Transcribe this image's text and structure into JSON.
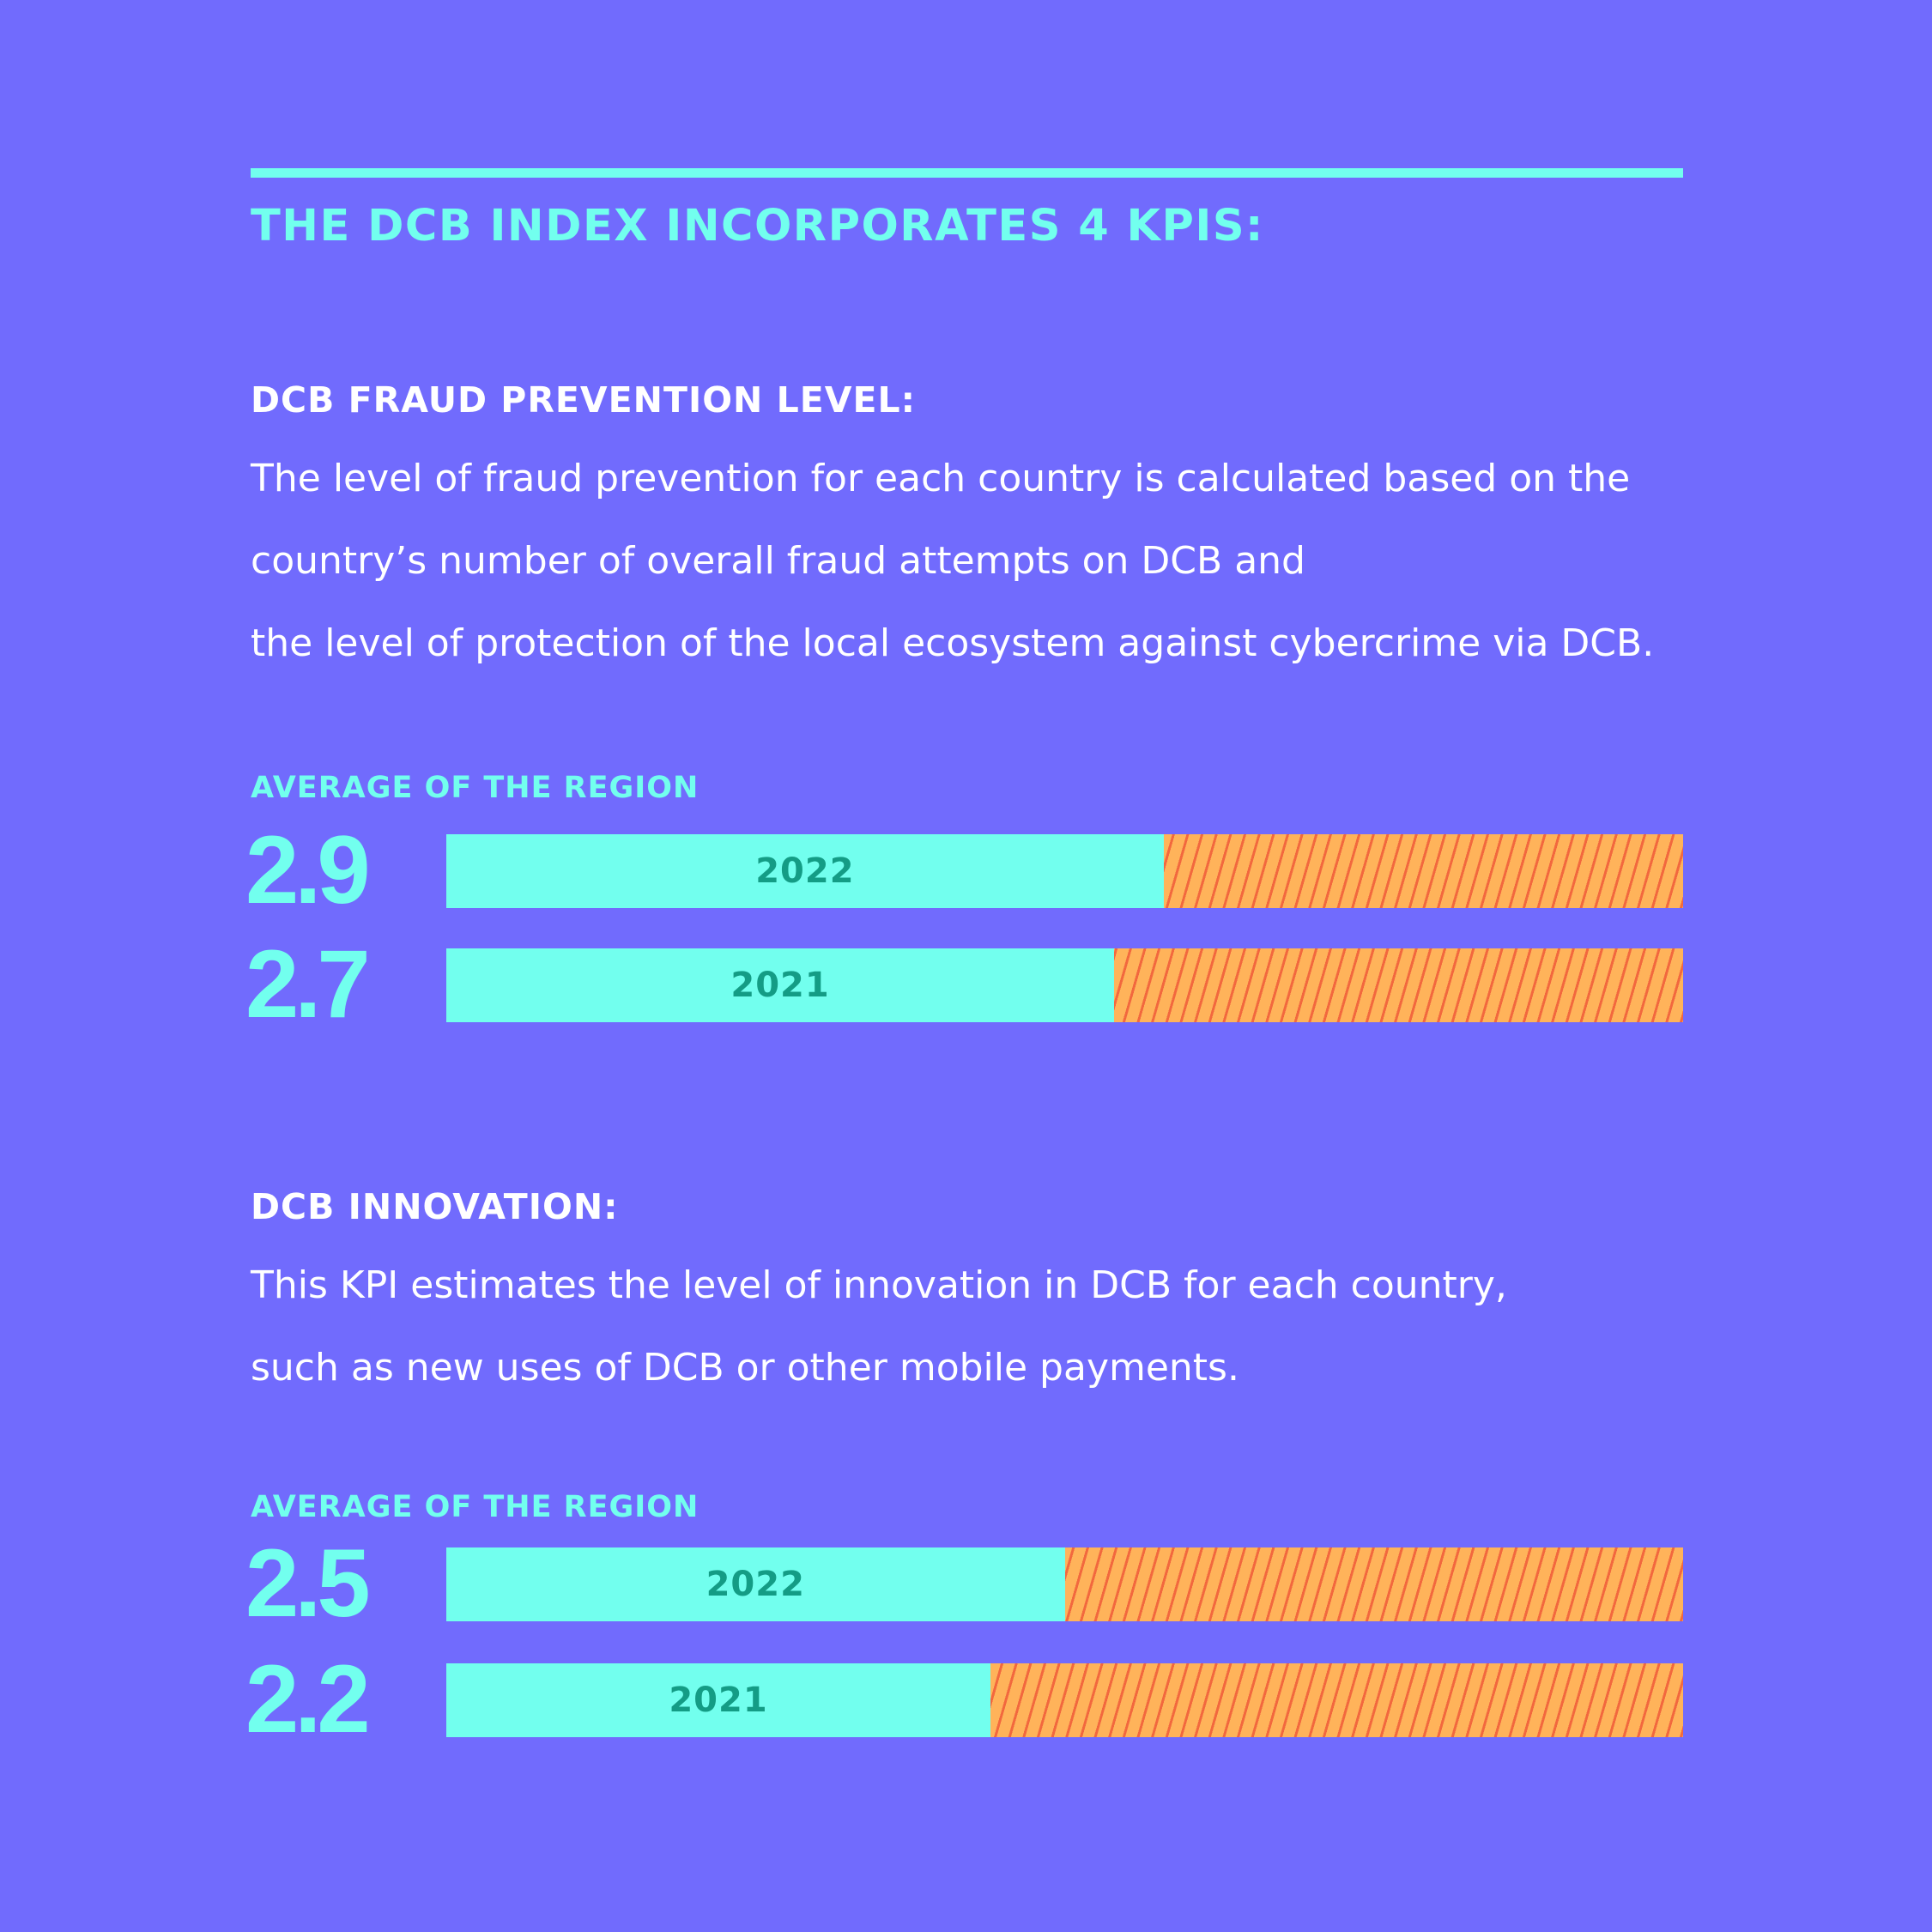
{
  "title": "THE DCB INDEX INCORPORATES 4 KPIS:",
  "colors": {
    "background": "#716bfd",
    "accent": "#72ffee",
    "bar_remainder": "#ffb35a",
    "bar_hatch": "#f2683e",
    "year_text": "#149c85"
  },
  "kpis": [
    {
      "heading": "DCB FRAUD PREVENTION LEVEL:",
      "description": [
        "The level of fraud prevention for each country is calculated based on the",
        "country’s number of overall fraud attempts on DCB and",
        "the level of protection of the local ecosystem against cybercrime via DCB."
      ],
      "avg_label": "AVERAGE OF THE REGION",
      "rows": [
        {
          "value_label": "2.9",
          "year": "2022"
        },
        {
          "value_label": "2.7",
          "year": "2021"
        }
      ]
    },
    {
      "heading": "DCB INNOVATION:",
      "description": [
        "This KPI estimates the level of innovation in DCB for each country,",
        "such as new uses of DCB or other mobile payments."
      ],
      "avg_label": "AVERAGE OF THE REGION",
      "rows": [
        {
          "value_label": "2.5",
          "year": "2022"
        },
        {
          "value_label": "2.2",
          "year": "2021"
        }
      ]
    }
  ],
  "chart_data": [
    {
      "type": "bar",
      "orientation": "horizontal",
      "stacked_to_max": true,
      "title": "DCB FRAUD PREVENTION LEVEL:",
      "categories": [
        "2022",
        "2021"
      ],
      "values": [
        2.9,
        2.7
      ],
      "xlim": [
        0,
        5
      ]
    },
    {
      "type": "bar",
      "orientation": "horizontal",
      "stacked_to_max": true,
      "title": "DCB INNOVATION:",
      "categories": [
        "2022",
        "2021"
      ],
      "values": [
        2.5,
        2.2
      ],
      "xlim": [
        0,
        5
      ]
    }
  ]
}
